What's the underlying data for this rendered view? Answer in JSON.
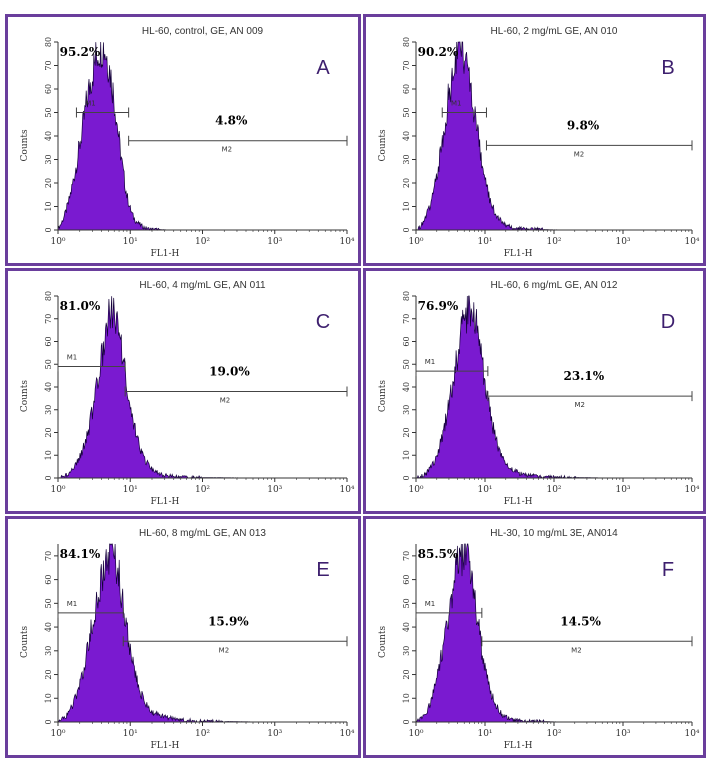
{
  "colors": {
    "frame": "#6a3e9c",
    "fill": "#7a1ad0",
    "outline": "#14003a",
    "axis": "#333333",
    "letter": "#3d1f6e"
  },
  "chart_data": [
    {
      "type": "area",
      "panel_letter": "A",
      "title": "HL-60, control, GE, AN 009",
      "xlabel": "FL1-H",
      "ylabel": "Counts",
      "x_scale": "log",
      "xlim": [
        1,
        10000
      ],
      "ylim": [
        0,
        80
      ],
      "x_tick_labels": [
        "10⁰",
        "10¹",
        "10²",
        "10³",
        "10⁴"
      ],
      "y_ticks": [
        0,
        10,
        20,
        30,
        40,
        50,
        60,
        70,
        80
      ],
      "x": [
        1.0,
        1.12,
        1.26,
        1.41,
        1.58,
        1.78,
        2.0,
        2.24,
        2.51,
        2.82,
        3.16,
        3.55,
        3.98,
        4.47,
        5.01,
        5.62,
        6.31,
        7.08,
        7.94,
        8.91,
        10.0,
        11.2,
        12.6,
        14.1,
        15.8,
        17.8,
        20.0,
        25.1,
        31.6,
        50.1,
        100,
        1000,
        10000
      ],
      "counts": [
        0.5,
        3,
        7,
        12,
        19,
        27,
        36,
        45,
        55,
        63,
        70,
        76,
        79,
        77,
        71,
        62,
        50,
        37,
        25,
        15,
        9,
        5,
        3,
        2,
        1,
        0.5,
        0.3,
        0.2,
        0.1,
        0,
        0,
        0,
        0
      ],
      "markers": [
        {
          "name": "M1",
          "from": 1.8,
          "to": 9.5,
          "level": 50,
          "percent": "95.2%"
        },
        {
          "name": "M2",
          "from": 9.5,
          "to": 10000,
          "level": 38,
          "percent": "4.8%"
        }
      ]
    },
    {
      "type": "area",
      "panel_letter": "B",
      "title": "HL-60, 2 mg/mL GE, AN 010",
      "xlabel": "FL1-H",
      "ylabel": "Counts",
      "x_scale": "log",
      "xlim": [
        1,
        10000
      ],
      "ylim": [
        0,
        80
      ],
      "x_tick_labels": [
        "10⁰",
        "10¹",
        "10²",
        "10³",
        "10⁴"
      ],
      "y_ticks": [
        0,
        10,
        20,
        30,
        40,
        50,
        60,
        70,
        80
      ],
      "x": [
        1.0,
        1.12,
        1.26,
        1.41,
        1.58,
        1.78,
        2.0,
        2.24,
        2.51,
        2.82,
        3.16,
        3.55,
        3.98,
        4.47,
        5.01,
        5.62,
        6.31,
        7.08,
        7.94,
        8.91,
        10.0,
        11.2,
        12.6,
        14.1,
        15.8,
        17.8,
        20.0,
        25.1,
        31.6,
        50.1,
        100,
        1000,
        10000
      ],
      "counts": [
        0,
        1,
        3,
        6,
        10,
        16,
        23,
        32,
        42,
        52,
        61,
        69,
        74,
        78,
        76,
        70,
        61,
        50,
        39,
        29,
        21,
        15,
        11,
        7,
        5,
        3,
        2,
        1,
        0.6,
        0.3,
        0.1,
        0,
        0
      ],
      "markers": [
        {
          "name": "M1",
          "from": 2.4,
          "to": 10.5,
          "level": 50,
          "percent": "90.2%"
        },
        {
          "name": "M2",
          "from": 10.5,
          "to": 10000,
          "level": 36,
          "percent": "9.8%"
        }
      ]
    },
    {
      "type": "area",
      "panel_letter": "C",
      "title": "HL-60, 4 mg/mL GE, AN 011",
      "xlabel": "FL1-H",
      "ylabel": "Counts",
      "x_scale": "log",
      "xlim": [
        1,
        10000
      ],
      "ylim": [
        0,
        80
      ],
      "x_tick_labels": [
        "10⁰",
        "10¹",
        "10²",
        "10³",
        "10⁴"
      ],
      "y_ticks": [
        0,
        10,
        20,
        30,
        40,
        50,
        60,
        70,
        80
      ],
      "x": [
        1.0,
        1.12,
        1.26,
        1.41,
        1.58,
        1.78,
        2.0,
        2.24,
        2.51,
        2.82,
        3.16,
        3.55,
        3.98,
        4.47,
        5.01,
        5.62,
        6.31,
        7.08,
        7.94,
        8.91,
        10.0,
        11.2,
        12.6,
        14.1,
        15.8,
        17.8,
        20.0,
        25.1,
        31.6,
        50.1,
        100,
        1000,
        10000
      ],
      "counts": [
        0,
        0.5,
        1,
        2,
        4,
        6,
        9,
        13,
        18,
        25,
        33,
        42,
        52,
        62,
        70,
        74,
        72,
        64,
        53,
        42,
        32,
        24,
        17,
        12,
        8,
        6,
        4,
        2,
        1,
        0.5,
        0.2,
        0,
        0
      ],
      "markers": [
        {
          "name": "M1",
          "from": 1.0,
          "to": 8.5,
          "level": 49,
          "percent": "81.0%"
        },
        {
          "name": "M2",
          "from": 8.5,
          "to": 10000,
          "level": 38,
          "percent": "19.0%"
        }
      ]
    },
    {
      "type": "area",
      "panel_letter": "D",
      "title": "HL-60, 6 mg/mL GE, AN 012",
      "xlabel": "FL1-H",
      "ylabel": "Counts",
      "x_scale": "log",
      "xlim": [
        1,
        10000
      ],
      "ylim": [
        0,
        80
      ],
      "x_tick_labels": [
        "10⁰",
        "10¹",
        "10²",
        "10³",
        "10⁴"
      ],
      "y_ticks": [
        0,
        10,
        20,
        30,
        40,
        50,
        60,
        70,
        80
      ],
      "x": [
        1.0,
        1.12,
        1.26,
        1.41,
        1.58,
        1.78,
        2.0,
        2.24,
        2.51,
        2.82,
        3.16,
        3.55,
        3.98,
        4.47,
        5.01,
        5.62,
        6.31,
        7.08,
        7.94,
        8.91,
        10.0,
        11.2,
        12.6,
        14.1,
        15.8,
        17.8,
        20.0,
        25.1,
        31.6,
        50.1,
        100,
        1000,
        10000
      ],
      "counts": [
        0,
        0.5,
        1,
        2,
        4,
        6,
        10,
        15,
        21,
        28,
        36,
        45,
        54,
        62,
        69,
        74,
        75,
        71,
        62,
        52,
        42,
        33,
        25,
        18,
        13,
        9,
        6,
        4,
        2,
        1,
        0.3,
        0,
        0
      ],
      "markers": [
        {
          "name": "M1",
          "from": 1.0,
          "to": 11,
          "level": 47,
          "percent": "76.9%"
        },
        {
          "name": "M2",
          "from": 11,
          "to": 10000,
          "level": 36,
          "percent": "23.1%"
        }
      ]
    },
    {
      "type": "area",
      "panel_letter": "E",
      "title": "HL-60, 8 mg/mL GE, AN 013",
      "xlabel": "FL1-H",
      "ylabel": "Counts",
      "x_scale": "log",
      "xlim": [
        1,
        10000
      ],
      "ylim": [
        0,
        75
      ],
      "x_tick_labels": [
        "10⁰",
        "10¹",
        "10²",
        "10³",
        "10⁴"
      ],
      "y_ticks": [
        0,
        10,
        20,
        30,
        40,
        50,
        60,
        70
      ],
      "x": [
        1.0,
        1.12,
        1.26,
        1.41,
        1.58,
        1.78,
        2.0,
        2.24,
        2.51,
        2.82,
        3.16,
        3.55,
        3.98,
        4.47,
        5.01,
        5.62,
        6.31,
        7.08,
        7.94,
        8.91,
        10.0,
        11.2,
        12.6,
        14.1,
        15.8,
        17.8,
        20.0,
        25.1,
        31.6,
        50.1,
        100,
        1000,
        10000
      ],
      "counts": [
        0,
        1,
        2,
        4,
        7,
        11,
        16,
        22,
        29,
        37,
        45,
        53,
        60,
        66,
        70,
        71,
        68,
        60,
        50,
        40,
        31,
        23,
        17,
        12,
        8,
        6,
        4,
        3,
        2,
        1,
        0.3,
        0,
        0
      ],
      "markers": [
        {
          "name": "M1",
          "from": 1.0,
          "to": 8.0,
          "level": 46,
          "percent": "84.1%"
        },
        {
          "name": "M2",
          "from": 8.0,
          "to": 10000,
          "level": 34,
          "percent": "15.9%"
        }
      ]
    },
    {
      "type": "area",
      "panel_letter": "F",
      "title": "HL-30, 10 mg/mL 3E, AN014",
      "xlabel": "FL1-H",
      "ylabel": "Counts",
      "x_scale": "log",
      "xlim": [
        1,
        10000
      ],
      "ylim": [
        0,
        75
      ],
      "x_tick_labels": [
        "10⁰",
        "10¹",
        "10²",
        "10³",
        "10⁴"
      ],
      "y_ticks": [
        0,
        10,
        20,
        30,
        40,
        50,
        60,
        70
      ],
      "x": [
        1.0,
        1.12,
        1.26,
        1.41,
        1.58,
        1.78,
        2.0,
        2.24,
        2.51,
        2.82,
        3.16,
        3.55,
        3.98,
        4.47,
        5.01,
        5.62,
        6.31,
        7.08,
        7.94,
        8.91,
        10.0,
        11.2,
        12.6,
        14.1,
        15.8,
        17.8,
        20.0,
        25.1,
        31.6,
        50.1,
        100,
        1000,
        10000
      ],
      "counts": [
        0,
        1,
        2,
        4,
        7,
        12,
        18,
        25,
        33,
        42,
        51,
        59,
        66,
        70,
        71,
        68,
        61,
        51,
        41,
        31,
        23,
        16,
        11,
        8,
        5,
        3,
        2,
        1,
        0.6,
        0.3,
        0.1,
        0,
        0
      ],
      "markers": [
        {
          "name": "M1",
          "from": 1.0,
          "to": 9.0,
          "level": 46,
          "percent": "85.5%"
        },
        {
          "name": "M2",
          "from": 9.0,
          "to": 10000,
          "level": 34,
          "percent": "14.5%"
        }
      ]
    }
  ]
}
